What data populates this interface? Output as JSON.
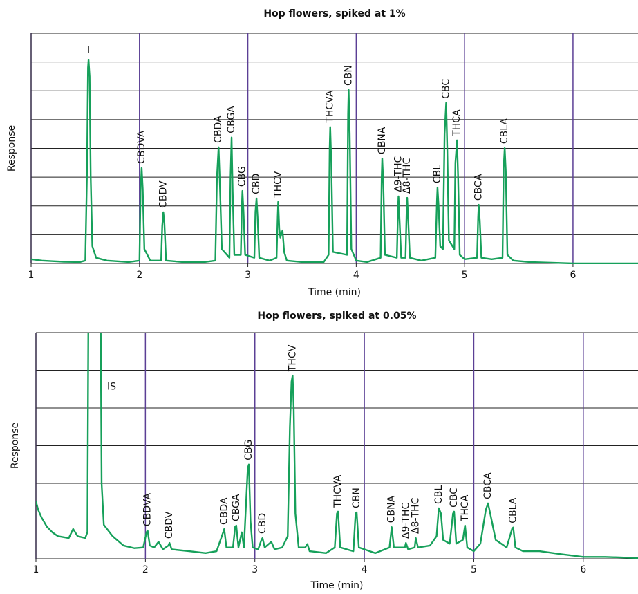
{
  "chart_data": [
    {
      "type": "line",
      "title": "Hop flowers, spiked at 1%",
      "xlabel": "Time (min)",
      "ylabel": "Response",
      "color": "#16a05a",
      "grid_color": "#5b3f95",
      "xlim": [
        1,
        6.6
      ],
      "xticks": [
        1,
        2,
        3,
        4,
        5,
        6
      ],
      "ylim": [
        0,
        8
      ],
      "yticks": [
        0,
        1,
        2,
        3,
        4,
        5,
        6,
        7,
        8
      ],
      "show_ytick_labels": false,
      "x": [
        1.0,
        1.1,
        1.2,
        1.3,
        1.45,
        1.5,
        1.515,
        1.525,
        1.53,
        1.54,
        1.55,
        1.565,
        1.6,
        1.7,
        1.9,
        2.0,
        2.01,
        2.02,
        2.03,
        2.045,
        2.1,
        2.2,
        2.21,
        2.22,
        2.23,
        2.245,
        2.4,
        2.6,
        2.7,
        2.715,
        2.73,
        2.74,
        2.76,
        2.83,
        2.84,
        2.85,
        2.86,
        2.875,
        2.935,
        2.945,
        2.95,
        2.96,
        2.975,
        3.06,
        3.07,
        3.08,
        3.09,
        3.105,
        3.2,
        3.265,
        3.275,
        3.28,
        3.29,
        3.3,
        3.32,
        3.335,
        3.36,
        3.5,
        3.7,
        3.745,
        3.755,
        3.76,
        3.77,
        3.785,
        3.915,
        3.925,
        3.93,
        3.94,
        3.955,
        4.0,
        4.1,
        4.225,
        4.235,
        4.24,
        4.25,
        4.265,
        4.375,
        4.385,
        4.39,
        4.4,
        4.415,
        4.455,
        4.465,
        4.47,
        4.48,
        4.495,
        4.6,
        4.73,
        4.745,
        4.75,
        4.76,
        4.775,
        4.8,
        4.815,
        4.83,
        4.84,
        4.855,
        4.905,
        4.915,
        4.93,
        4.94,
        4.955,
        5.0,
        5.115,
        5.125,
        5.13,
        5.14,
        5.155,
        5.25,
        5.35,
        5.36,
        5.37,
        5.38,
        5.395,
        5.45,
        5.6,
        6.0,
        6.6
      ],
      "values": [
        0.15,
        0.1,
        0.08,
        0.06,
        0.05,
        0.1,
        3.0,
        6.8,
        7.07,
        6.5,
        3.0,
        0.6,
        0.2,
        0.1,
        0.05,
        0.1,
        2.5,
        3.32,
        2.6,
        0.5,
        0.1,
        0.1,
        1.3,
        1.78,
        1.4,
        0.1,
        0.05,
        0.05,
        0.1,
        3.0,
        4.04,
        3.0,
        0.5,
        0.2,
        3.0,
        4.38,
        2.5,
        0.3,
        0.3,
        2.0,
        2.52,
        1.8,
        0.3,
        0.2,
        1.8,
        2.26,
        1.6,
        0.2,
        0.1,
        0.2,
        1.6,
        2.14,
        1.2,
        0.9,
        1.15,
        0.4,
        0.1,
        0.05,
        0.05,
        0.3,
        4.0,
        4.74,
        3.5,
        0.4,
        0.3,
        5.2,
        6.03,
        4.5,
        0.5,
        0.1,
        0.05,
        0.2,
        3.0,
        3.65,
        2.8,
        0.3,
        0.2,
        1.8,
        2.33,
        1.5,
        0.2,
        0.2,
        1.8,
        2.28,
        1.5,
        0.2,
        0.1,
        0.2,
        2.2,
        2.64,
        2.0,
        0.6,
        0.5,
        4.5,
        5.58,
        4.0,
        0.8,
        0.5,
        3.5,
        4.28,
        3.0,
        0.3,
        0.15,
        0.2,
        1.6,
        2.04,
        1.5,
        0.2,
        0.15,
        0.2,
        3.3,
        4.01,
        3.2,
        0.3,
        0.1,
        0.05,
        0.0,
        0.0
      ],
      "annotations": [
        {
          "text": "I",
          "x": 1.53,
          "vertical": false
        },
        {
          "text": "CBDVA",
          "x": 2.02,
          "vertical": true
        },
        {
          "text": "CBDV",
          "x": 2.22,
          "vertical": true
        },
        {
          "text": "CBDA",
          "x": 2.73,
          "vertical": true
        },
        {
          "text": "CBGA",
          "x": 2.85,
          "vertical": true
        },
        {
          "text": "CBG",
          "x": 2.95,
          "vertical": true
        },
        {
          "text": "CBD",
          "x": 3.08,
          "vertical": true
        },
        {
          "text": "THCV",
          "x": 3.28,
          "vertical": true
        },
        {
          "text": "THCVA",
          "x": 3.76,
          "vertical": true
        },
        {
          "text": "CBN",
          "x": 3.93,
          "vertical": true
        },
        {
          "text": "CBNA",
          "x": 4.24,
          "vertical": true
        },
        {
          "text": "Δ9-THC",
          "x": 4.39,
          "vertical": true
        },
        {
          "text": "Δ8-THC",
          "x": 4.47,
          "vertical": true
        },
        {
          "text": "CBL",
          "x": 4.75,
          "vertical": true
        },
        {
          "text": "CBC",
          "x": 4.83,
          "vertical": true
        },
        {
          "text": "THCA",
          "x": 4.93,
          "vertical": true
        },
        {
          "text": "CBCA",
          "x": 5.13,
          "vertical": true
        },
        {
          "text": "CBLA",
          "x": 5.37,
          "vertical": true
        }
      ]
    },
    {
      "type": "line",
      "title": "Hop flowers, spiked at 0.05%",
      "xlabel": "Time (min)",
      "ylabel": "Response",
      "color": "#16a05a",
      "grid_color": "#5b3f95",
      "xlim": [
        1,
        6.5
      ],
      "xticks": [
        1,
        2,
        3,
        4,
        5,
        6
      ],
      "ylim": [
        0,
        6
      ],
      "yticks": [
        0,
        1,
        2,
        3,
        4,
        5,
        6
      ],
      "show_ytick_labels": false,
      "x": [
        1.0,
        1.02,
        1.05,
        1.1,
        1.15,
        1.2,
        1.3,
        1.34,
        1.38,
        1.45,
        1.47,
        1.48,
        1.59,
        1.6,
        1.62,
        1.7,
        1.8,
        1.9,
        1.98,
        2.01,
        2.02,
        2.04,
        2.08,
        2.12,
        2.16,
        2.21,
        2.22,
        2.24,
        2.4,
        2.55,
        2.65,
        2.71,
        2.72,
        2.74,
        2.8,
        2.82,
        2.83,
        2.85,
        2.88,
        2.9,
        2.925,
        2.935,
        2.945,
        2.96,
        2.98,
        3.03,
        3.06,
        3.07,
        3.09,
        3.15,
        3.18,
        3.25,
        3.3,
        3.32,
        3.335,
        3.345,
        3.355,
        3.37,
        3.4,
        3.46,
        3.48,
        3.5,
        3.65,
        3.73,
        3.75,
        3.76,
        3.78,
        3.9,
        3.92,
        3.93,
        3.95,
        4.1,
        4.23,
        4.25,
        4.27,
        4.37,
        4.38,
        4.4,
        4.46,
        4.47,
        4.49,
        4.6,
        4.66,
        4.68,
        4.7,
        4.72,
        4.78,
        4.81,
        4.82,
        4.84,
        4.9,
        4.92,
        4.94,
        5.0,
        5.06,
        5.11,
        5.13,
        5.15,
        5.2,
        5.3,
        5.35,
        5.36,
        5.38,
        5.45,
        5.6,
        5.8,
        6.0,
        6.2,
        6.5
      ],
      "values": [
        1.52,
        1.3,
        1.1,
        0.85,
        0.7,
        0.6,
        0.55,
        0.79,
        0.6,
        0.55,
        0.7,
        7.0,
        7.0,
        2.0,
        0.9,
        0.6,
        0.35,
        0.28,
        0.3,
        0.7,
        0.75,
        0.35,
        0.3,
        0.45,
        0.25,
        0.35,
        0.42,
        0.25,
        0.2,
        0.15,
        0.2,
        0.7,
        0.79,
        0.3,
        0.3,
        0.85,
        0.88,
        0.3,
        0.7,
        0.3,
        1.8,
        2.4,
        2.5,
        1.0,
        0.3,
        0.25,
        0.5,
        0.55,
        0.3,
        0.45,
        0.25,
        0.3,
        0.6,
        3.5,
        4.7,
        4.86,
        4.0,
        1.2,
        0.3,
        0.3,
        0.39,
        0.2,
        0.15,
        0.3,
        1.2,
        1.25,
        0.3,
        0.2,
        1.2,
        1.23,
        0.3,
        0.15,
        0.3,
        0.84,
        0.3,
        0.3,
        0.42,
        0.25,
        0.3,
        0.55,
        0.3,
        0.35,
        0.6,
        1.34,
        1.2,
        0.5,
        0.4,
        1.2,
        1.25,
        0.4,
        0.5,
        0.88,
        0.3,
        0.2,
        0.4,
        1.3,
        1.47,
        1.2,
        0.5,
        0.3,
        0.8,
        0.83,
        0.3,
        0.2,
        0.2,
        0.12,
        0.05,
        0.05,
        0.02
      ],
      "annotations": [
        {
          "text": "IS",
          "x": 1.6,
          "vertical": false
        },
        {
          "text": "CBDVA",
          "x": 2.02,
          "vertical": true
        },
        {
          "text": "CBDV",
          "x": 2.22,
          "vertical": true
        },
        {
          "text": "CBDA",
          "x": 2.72,
          "vertical": true
        },
        {
          "text": "CBGA",
          "x": 2.83,
          "vertical": true
        },
        {
          "text": "CBG",
          "x": 2.945,
          "vertical": true
        },
        {
          "text": "CBD",
          "x": 3.07,
          "vertical": true
        },
        {
          "text": "THCV",
          "x": 3.345,
          "vertical": true
        },
        {
          "text": "THCVA",
          "x": 3.76,
          "vertical": true
        },
        {
          "text": "CBN",
          "x": 3.93,
          "vertical": true
        },
        {
          "text": "CBNA",
          "x": 4.25,
          "vertical": true
        },
        {
          "text": "Δ9-THC",
          "x": 4.38,
          "vertical": true
        },
        {
          "text": "Δ8-THC",
          "x": 4.47,
          "vertical": true
        },
        {
          "text": "CBL",
          "x": 4.68,
          "vertical": true
        },
        {
          "text": "CBC",
          "x": 4.82,
          "vertical": true
        },
        {
          "text": "THCA",
          "x": 4.92,
          "vertical": true
        },
        {
          "text": "CBCA",
          "x": 5.13,
          "vertical": true
        },
        {
          "text": "CBLA",
          "x": 5.36,
          "vertical": true
        }
      ]
    }
  ]
}
